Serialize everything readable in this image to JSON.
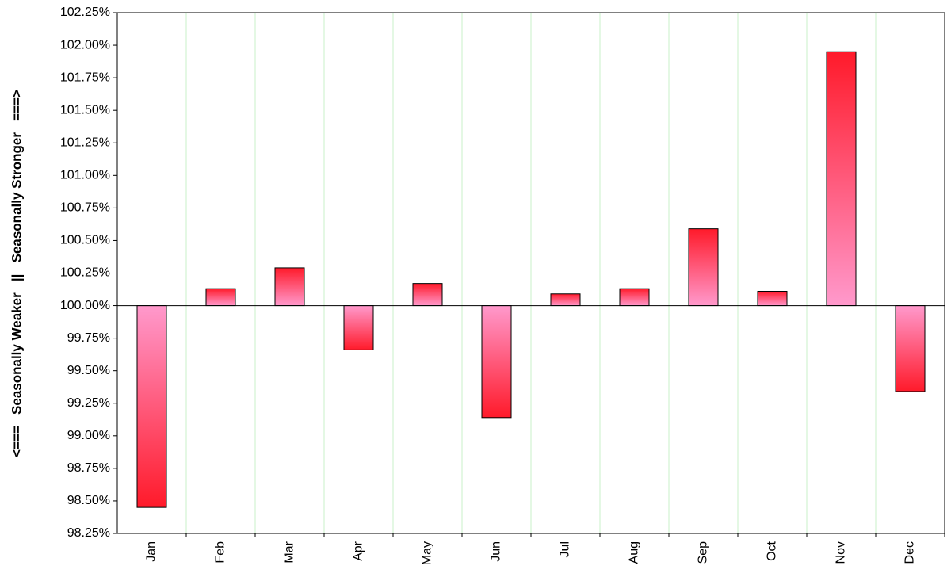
{
  "chart_data": {
    "type": "bar",
    "y_label": "<===   Seasonally Weaker   ||   Seasonally Stronger   ===>",
    "categories": [
      "Jan",
      "Feb",
      "Mar",
      "Apr",
      "May",
      "Jun",
      "Jul",
      "Aug",
      "Sep",
      "Oct",
      "Nov",
      "Dec"
    ],
    "values": [
      98.45,
      100.13,
      100.29,
      99.66,
      100.17,
      99.14,
      100.09,
      100.13,
      100.59,
      100.11,
      101.95,
      99.34
    ],
    "baseline": 100,
    "color_far": "#ff1a2a",
    "color_near": "#ff99cc",
    "ylim": [
      98.25,
      102.25
    ],
    "yticks": [
      {
        "value": 98.25,
        "label": "98.25%"
      },
      {
        "value": 98.5,
        "label": "98.50%"
      },
      {
        "value": 98.75,
        "label": "98.75%"
      },
      {
        "value": 99,
        "label": "99.00%"
      },
      {
        "value": 99.25,
        "label": "99.25%"
      },
      {
        "value": 99.5,
        "label": "99.50%"
      },
      {
        "value": 99.75,
        "label": "99.75%"
      },
      {
        "value": 100,
        "label": "100.00%"
      },
      {
        "value": 100.25,
        "label": "100.25%"
      },
      {
        "value": 100.5,
        "label": "100.50%"
      },
      {
        "value": 100.75,
        "label": "100.75%"
      },
      {
        "value": 101,
        "label": "101.00%"
      },
      {
        "value": 101.25,
        "label": "101.25%"
      },
      {
        "value": 101.5,
        "label": "101.50%"
      },
      {
        "value": 101.75,
        "label": "101.75%"
      },
      {
        "value": 102,
        "label": "102.00%"
      },
      {
        "value": 102.25,
        "label": "102.25%"
      }
    ],
    "grid": "x"
  }
}
